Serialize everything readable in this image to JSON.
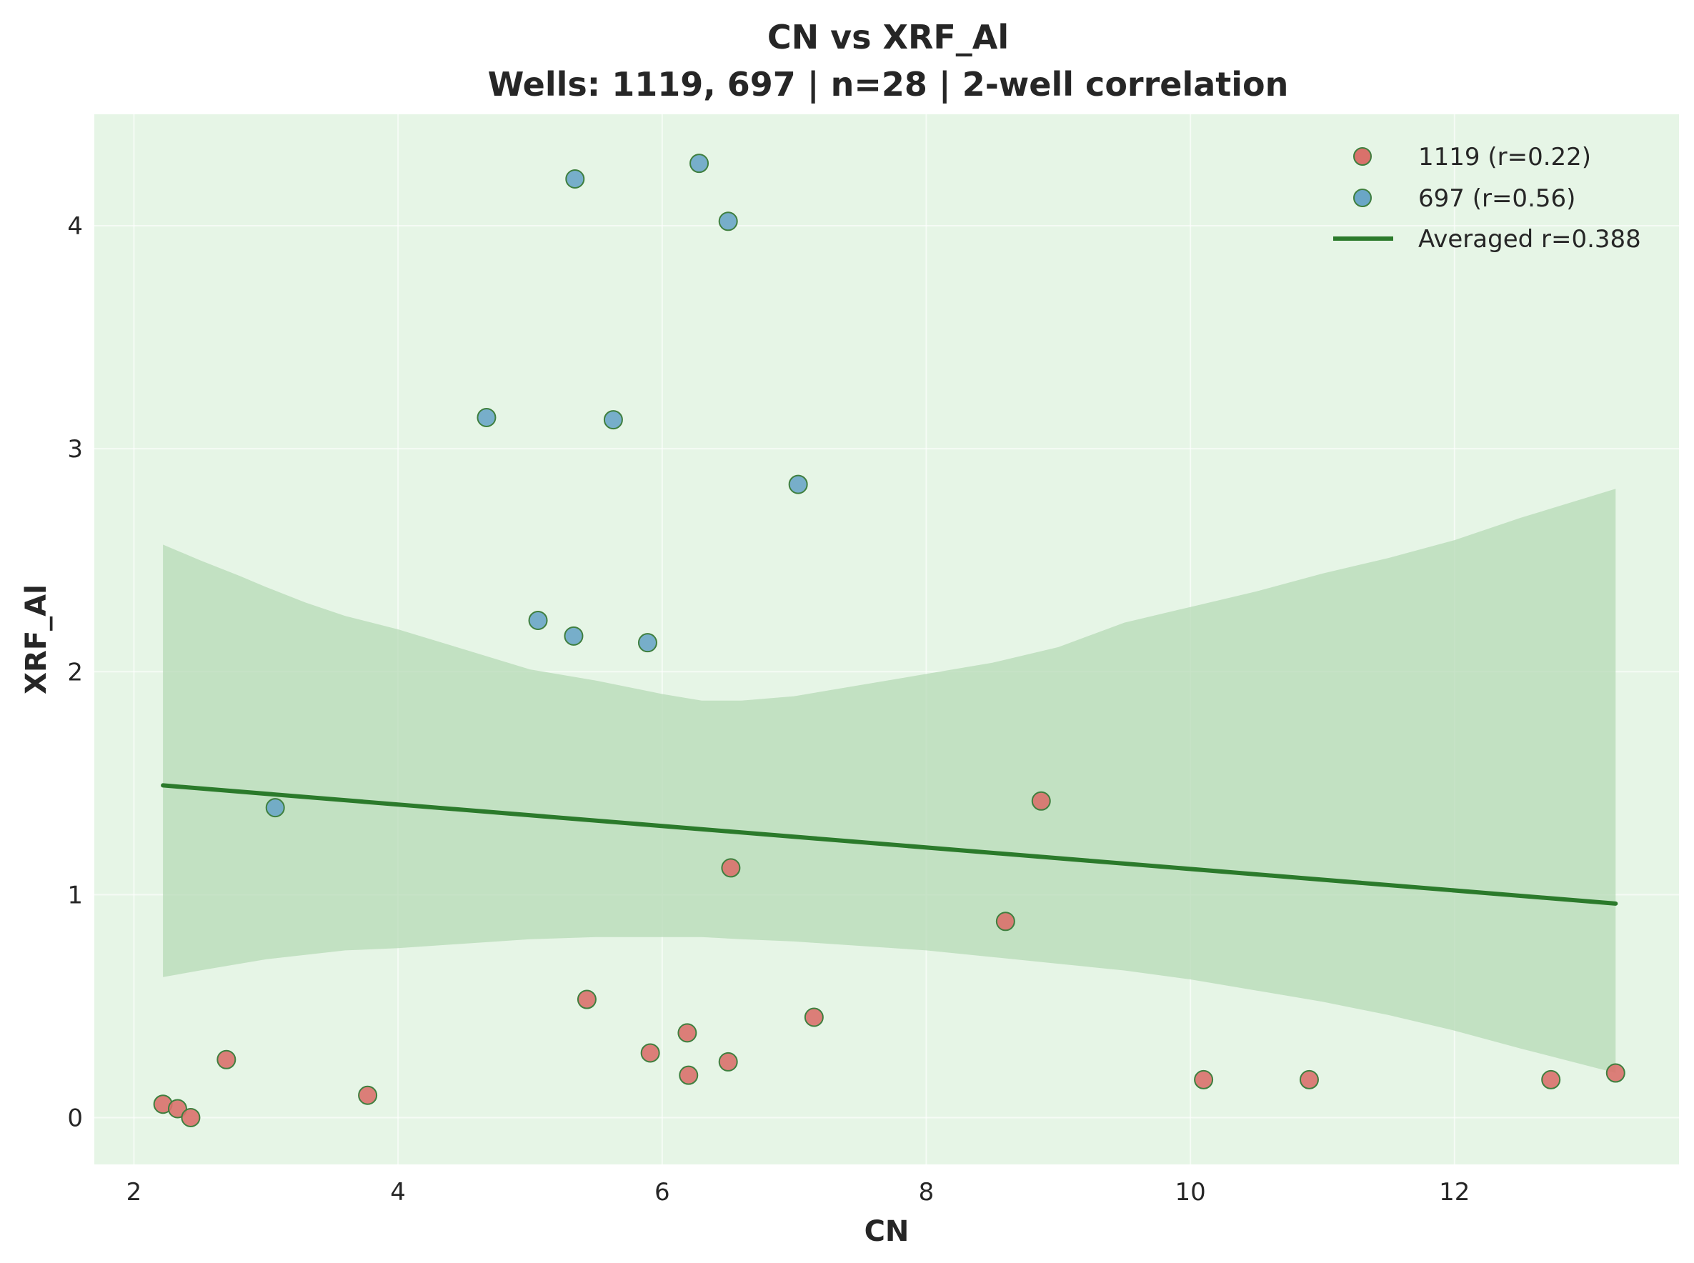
{
  "chart_data": {
    "type": "scatter",
    "title": "CN vs XRF_Al",
    "subtitle": "Wells: 1119, 697 | n=28 | 2-well correlation",
    "xlabel": "CN",
    "ylabel": "XRF_Al",
    "xlim": [
      1.7,
      13.7
    ],
    "ylim": [
      -0.21,
      4.5
    ],
    "xticks": [
      2,
      4,
      6,
      8,
      10,
      12
    ],
    "yticks": [
      0,
      1,
      2,
      3,
      4
    ],
    "grid": true,
    "legend_position": "top-right",
    "background_color": "#e6f5e6",
    "series": [
      {
        "name": "1119 (r=0.22)",
        "color": "#d9716b",
        "points": [
          {
            "x": 2.22,
            "y": 0.06
          },
          {
            "x": 2.33,
            "y": 0.04
          },
          {
            "x": 2.43,
            "y": 0.0
          },
          {
            "x": 2.7,
            "y": 0.26
          },
          {
            "x": 3.77,
            "y": 0.1
          },
          {
            "x": 5.43,
            "y": 0.53
          },
          {
            "x": 5.91,
            "y": 0.29
          },
          {
            "x": 6.19,
            "y": 0.38
          },
          {
            "x": 6.2,
            "y": 0.19
          },
          {
            "x": 6.5,
            "y": 0.25
          },
          {
            "x": 6.52,
            "y": 1.12
          },
          {
            "x": 7.15,
            "y": 0.45
          },
          {
            "x": 8.6,
            "y": 0.88
          },
          {
            "x": 8.87,
            "y": 1.42
          },
          {
            "x": 10.1,
            "y": 0.17
          },
          {
            "x": 10.9,
            "y": 0.17
          },
          {
            "x": 12.73,
            "y": 0.17
          },
          {
            "x": 13.22,
            "y": 0.2
          }
        ]
      },
      {
        "name": "697 (r=0.56)",
        "color": "#6aa6c6",
        "points": [
          {
            "x": 3.07,
            "y": 1.39
          },
          {
            "x": 4.67,
            "y": 3.14
          },
          {
            "x": 5.06,
            "y": 2.23
          },
          {
            "x": 5.33,
            "y": 2.16
          },
          {
            "x": 5.34,
            "y": 4.21
          },
          {
            "x": 5.63,
            "y": 3.13
          },
          {
            "x": 5.89,
            "y": 2.13
          },
          {
            "x": 6.28,
            "y": 4.28
          },
          {
            "x": 6.5,
            "y": 4.02
          },
          {
            "x": 7.03,
            "y": 2.84
          }
        ]
      }
    ],
    "trend_line": {
      "name": "Averaged r=0.388",
      "color": "#2b7a2b",
      "x": [
        2.22,
        13.22
      ],
      "y": [
        1.49,
        0.96
      ]
    },
    "confidence_band": {
      "color": "#b5d9b5",
      "x": [
        2.22,
        2.5,
        2.8,
        3.0,
        3.3,
        3.6,
        4.0,
        4.5,
        5.0,
        5.5,
        6.0,
        6.3,
        6.6,
        7.0,
        7.5,
        8.0,
        8.5,
        9.0,
        9.5,
        10.0,
        10.5,
        11.0,
        11.5,
        12.0,
        12.5,
        13.22
      ],
      "lower": [
        0.63,
        0.66,
        0.69,
        0.71,
        0.73,
        0.75,
        0.76,
        0.78,
        0.8,
        0.81,
        0.81,
        0.81,
        0.8,
        0.79,
        0.77,
        0.75,
        0.72,
        0.69,
        0.66,
        0.62,
        0.57,
        0.52,
        0.46,
        0.39,
        0.31,
        0.2
      ],
      "upper": [
        2.57,
        2.5,
        2.43,
        2.38,
        2.31,
        2.25,
        2.19,
        2.1,
        2.01,
        1.96,
        1.9,
        1.87,
        1.87,
        1.89,
        1.94,
        1.99,
        2.04,
        2.11,
        2.22,
        2.29,
        2.36,
        2.44,
        2.51,
        2.59,
        2.69,
        2.82
      ]
    }
  }
}
